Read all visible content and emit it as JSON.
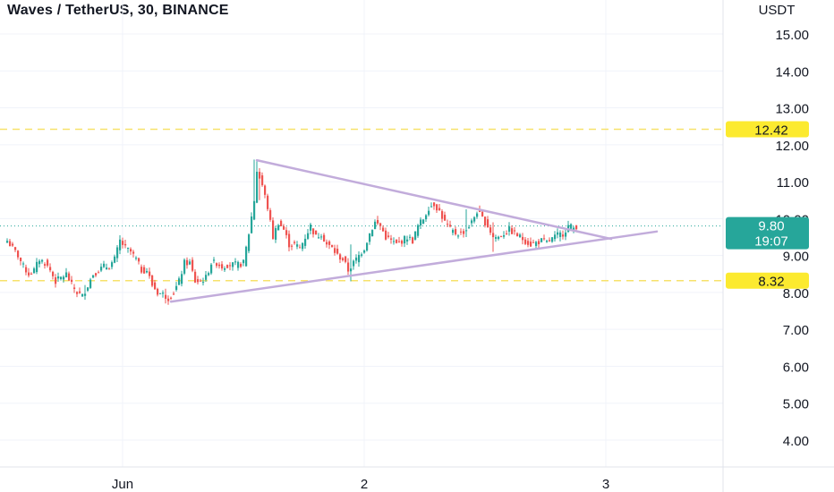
{
  "header": {
    "title": "Waves / TetherUS, 30, BINANCE"
  },
  "colors": {
    "up": "#26a69a",
    "down": "#ef5350",
    "grid": "#f0f3fa",
    "level_line": "#f7e26b",
    "level_badge": "#fcea2f",
    "trend": "#c2acdb",
    "price_badge": "#26a69a",
    "price_line": "#26a69a"
  },
  "chart_data": {
    "type": "candlestick",
    "title": "Waves / TetherUS, 30, BINANCE",
    "y_unit_label": "USDT",
    "ylim": [
      3.5,
      15.8
    ],
    "y_ticks": [
      {
        "value": 4,
        "label": "4.00"
      },
      {
        "value": 5,
        "label": "5.00"
      },
      {
        "value": 6,
        "label": "6.00"
      },
      {
        "value": 7,
        "label": "7.00"
      },
      {
        "value": 8,
        "label": "8.00"
      },
      {
        "value": 9,
        "label": "9.00"
      },
      {
        "value": 10,
        "label": "10.00"
      },
      {
        "value": 11,
        "label": "11.00"
      },
      {
        "value": 12,
        "label": "12.00"
      },
      {
        "value": 13,
        "label": "13.00"
      },
      {
        "value": 14,
        "label": "14.00"
      },
      {
        "value": 15,
        "label": "15.00"
      }
    ],
    "x_ticks": [
      {
        "index": 43,
        "label": "Jun"
      },
      {
        "index": 133,
        "label": "2"
      },
      {
        "index": 223,
        "label": "3"
      }
    ],
    "horizontal_levels": [
      {
        "value": 12.42,
        "label": "12.42"
      },
      {
        "value": 8.32,
        "label": "8.32"
      }
    ],
    "trendlines": [
      {
        "from": {
          "index": 93,
          "value": 11.58
        },
        "to": {
          "index": 225,
          "value": 9.45
        }
      },
      {
        "from": {
          "index": 61,
          "value": 7.75
        },
        "to": {
          "index": 242,
          "value": 9.65
        }
      }
    ],
    "last_price": {
      "value": 9.8,
      "label": "9.80",
      "countdown": "19:07"
    },
    "anchors": [
      {
        "i": 0,
        "c": 9.4
      },
      {
        "i": 2,
        "c": 9.2
      },
      {
        "i": 4,
        "c": 9.0
      },
      {
        "i": 6,
        "c": 8.7
      },
      {
        "i": 8,
        "c": 8.5
      },
      {
        "i": 10,
        "c": 8.6
      },
      {
        "i": 12,
        "c": 8.9
      },
      {
        "i": 14,
        "c": 8.8
      },
      {
        "i": 16,
        "c": 8.6
      },
      {
        "i": 18,
        "c": 8.3
      },
      {
        "i": 20,
        "c": 8.4
      },
      {
        "i": 22,
        "c": 8.5
      },
      {
        "i": 24,
        "c": 8.2
      },
      {
        "i": 26,
        "c": 8.0
      },
      {
        "i": 28,
        "c": 7.9
      },
      {
        "i": 30,
        "c": 8.2
      },
      {
        "i": 32,
        "c": 8.5
      },
      {
        "i": 34,
        "c": 8.6
      },
      {
        "i": 36,
        "c": 8.7
      },
      {
        "i": 38,
        "c": 8.7
      },
      {
        "i": 40,
        "c": 8.9
      },
      {
        "i": 42,
        "c": 9.4
      },
      {
        "i": 44,
        "c": 9.2
      },
      {
        "i": 46,
        "c": 9.1
      },
      {
        "i": 48,
        "c": 8.9
      },
      {
        "i": 50,
        "c": 8.6
      },
      {
        "i": 52,
        "c": 8.6
      },
      {
        "i": 54,
        "c": 8.2
      },
      {
        "i": 56,
        "c": 8.0
      },
      {
        "i": 58,
        "c": 7.95
      },
      {
        "i": 60,
        "c": 7.85
      },
      {
        "i": 62,
        "c": 8.0
      },
      {
        "i": 64,
        "c": 8.3
      },
      {
        "i": 66,
        "c": 8.8
      },
      {
        "i": 68,
        "c": 8.8
      },
      {
        "i": 70,
        "c": 8.3
      },
      {
        "i": 72,
        "c": 8.3
      },
      {
        "i": 74,
        "c": 8.4
      },
      {
        "i": 76,
        "c": 8.8
      },
      {
        "i": 78,
        "c": 8.8
      },
      {
        "i": 80,
        "c": 8.7
      },
      {
        "i": 82,
        "c": 8.75
      },
      {
        "i": 84,
        "c": 8.75
      },
      {
        "i": 86,
        "c": 8.75
      },
      {
        "i": 88,
        "c": 8.8
      },
      {
        "i": 90,
        "c": 9.6
      },
      {
        "i": 92,
        "c": 10.5
      },
      {
        "i": 93,
        "c": 11.3
      },
      {
        "i": 95,
        "c": 10.9
      },
      {
        "i": 97,
        "c": 10.3
      },
      {
        "i": 99,
        "c": 9.5
      },
      {
        "i": 101,
        "c": 9.9
      },
      {
        "i": 103,
        "c": 9.7
      },
      {
        "i": 105,
        "c": 9.3
      },
      {
        "i": 107,
        "c": 9.3
      },
      {
        "i": 109,
        "c": 9.2
      },
      {
        "i": 111,
        "c": 9.5
      },
      {
        "i": 113,
        "c": 9.8
      },
      {
        "i": 115,
        "c": 9.5
      },
      {
        "i": 117,
        "c": 9.6
      },
      {
        "i": 119,
        "c": 9.3
      },
      {
        "i": 121,
        "c": 9.2
      },
      {
        "i": 123,
        "c": 9.0
      },
      {
        "i": 125,
        "c": 8.9
      },
      {
        "i": 127,
        "c": 8.6
      },
      {
        "i": 129,
        "c": 8.8
      },
      {
        "i": 131,
        "c": 9.0
      },
      {
        "i": 133,
        "c": 9.2
      },
      {
        "i": 135,
        "c": 9.6
      },
      {
        "i": 137,
        "c": 9.9
      },
      {
        "i": 139,
        "c": 9.8
      },
      {
        "i": 141,
        "c": 9.5
      },
      {
        "i": 143,
        "c": 9.4
      },
      {
        "i": 145,
        "c": 9.3
      },
      {
        "i": 147,
        "c": 9.4
      },
      {
        "i": 149,
        "c": 9.5
      },
      {
        "i": 151,
        "c": 9.4
      },
      {
        "i": 153,
        "c": 9.8
      },
      {
        "i": 155,
        "c": 10.0
      },
      {
        "i": 157,
        "c": 10.3
      },
      {
        "i": 159,
        "c": 10.4
      },
      {
        "i": 161,
        "c": 10.2
      },
      {
        "i": 163,
        "c": 9.9
      },
      {
        "i": 165,
        "c": 9.7
      },
      {
        "i": 167,
        "c": 9.6
      },
      {
        "i": 169,
        "c": 9.6
      },
      {
        "i": 171,
        "c": 9.7
      },
      {
        "i": 173,
        "c": 9.9
      },
      {
        "i": 175,
        "c": 10.2
      },
      {
        "i": 177,
        "c": 10.0
      },
      {
        "i": 179,
        "c": 9.8
      },
      {
        "i": 181,
        "c": 9.5
      },
      {
        "i": 183,
        "c": 9.5
      },
      {
        "i": 185,
        "c": 9.6
      },
      {
        "i": 187,
        "c": 9.7
      },
      {
        "i": 189,
        "c": 9.6
      },
      {
        "i": 191,
        "c": 9.5
      },
      {
        "i": 193,
        "c": 9.4
      },
      {
        "i": 195,
        "c": 9.3
      },
      {
        "i": 197,
        "c": 9.35
      },
      {
        "i": 199,
        "c": 9.4
      },
      {
        "i": 201,
        "c": 9.35
      },
      {
        "i": 203,
        "c": 9.45
      },
      {
        "i": 205,
        "c": 9.55
      },
      {
        "i": 207,
        "c": 9.6
      },
      {
        "i": 209,
        "c": 9.8
      },
      {
        "i": 211,
        "c": 9.75
      },
      {
        "i": 212,
        "c": 9.8
      }
    ],
    "events": [
      {
        "i": 92,
        "h": 11.6,
        "l": 10.2
      },
      {
        "i": 93,
        "h": 11.55,
        "l": 10.8
      },
      {
        "i": 94,
        "h": 11.1,
        "l": 10.5
      },
      {
        "i": 128,
        "h": 9.3,
        "l": 8.3
      },
      {
        "i": 181,
        "h": 9.9,
        "l": 9.1
      },
      {
        "i": 59,
        "h": 8.1,
        "l": 7.7
      },
      {
        "i": 29,
        "h": 8.2,
        "l": 7.8
      },
      {
        "i": 171,
        "h": 10.25,
        "l": 9.5
      }
    ]
  }
}
